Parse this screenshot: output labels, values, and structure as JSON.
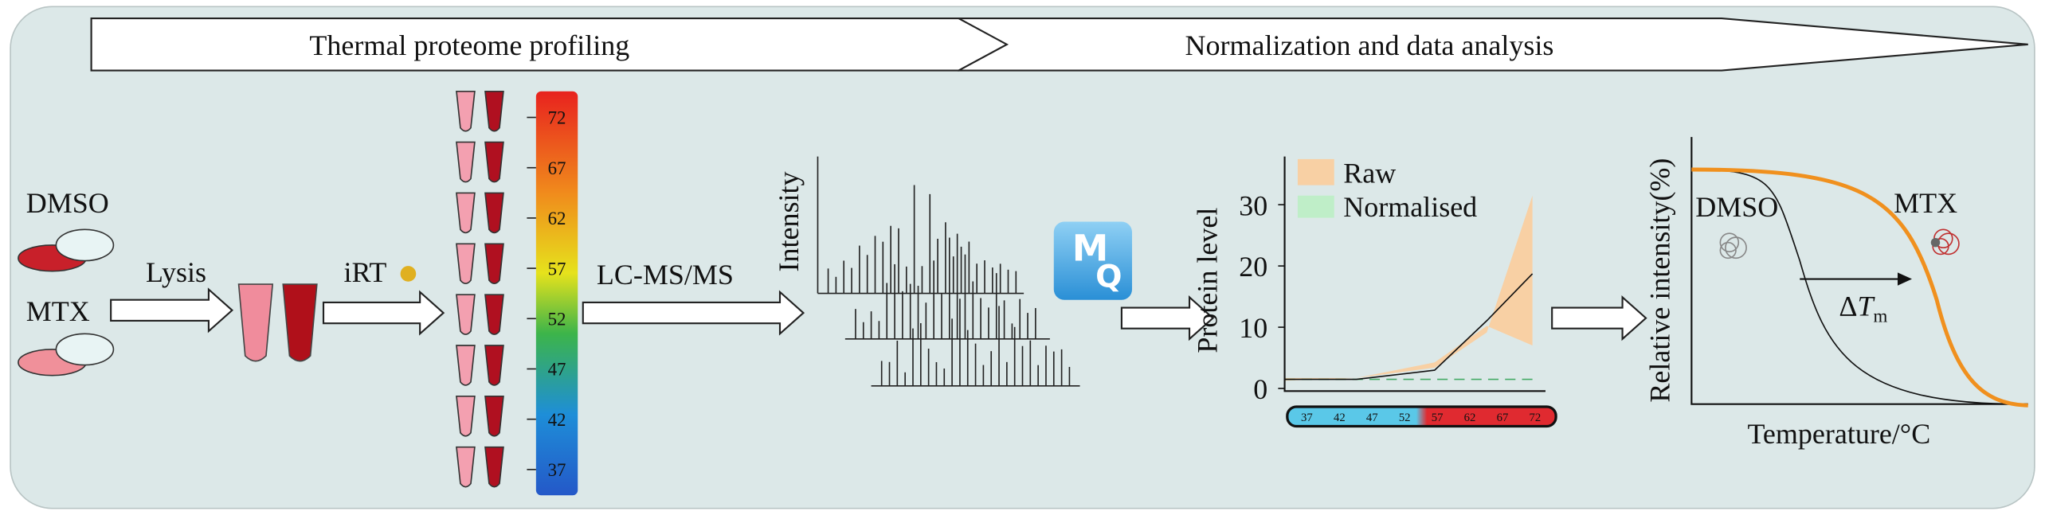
{
  "header": {
    "stage1": "Thermal proteome profiling",
    "stage2": "Normalization and data analysis"
  },
  "samples": [
    "DMSO",
    "MTX"
  ],
  "steps": {
    "lysis": "Lysis",
    "irt": "iRT",
    "lcms": "LC-MS/MS"
  },
  "temperature_bar": [
    "72",
    "67",
    "62",
    "57",
    "52",
    "47",
    "42",
    "37"
  ],
  "spectrum": {
    "y_label": "Intensity"
  },
  "logo": [
    "M",
    "Q"
  ],
  "protein_plot": {
    "y_label": "Protein level",
    "yticks": [
      "0",
      "10",
      "20",
      "30"
    ],
    "legend": [
      "Raw",
      "Normalised"
    ],
    "temperatures": [
      "37",
      "42",
      "47",
      "52",
      "57",
      "62",
      "67",
      "72"
    ]
  },
  "melt_plot": {
    "y_label": "Relative intensity(%)",
    "x_label": "Temperature/°C",
    "left_label": "DMSO",
    "right_label": "MTX",
    "shift": {
      "delta": "Δ",
      "symbol": "T",
      "subscript": "m"
    }
  }
}
